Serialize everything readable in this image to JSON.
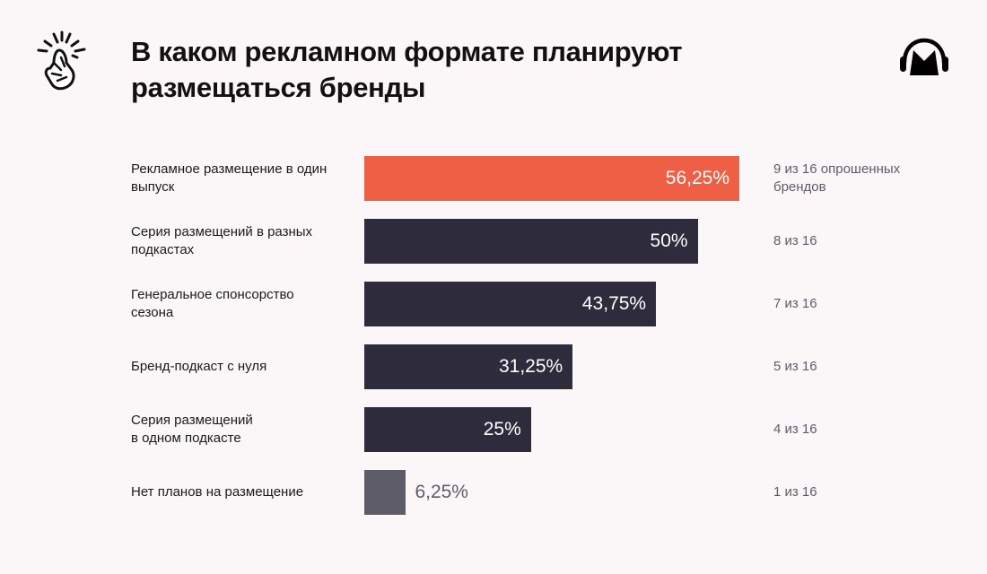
{
  "header": {
    "title_line1": "В каком рекламном формате планируют",
    "title_line2": "размещаться бренды",
    "left_logo_icon": "snapping-fingers-icon",
    "right_logo_icon": "headphones-m-logo-icon"
  },
  "colors": {
    "background": "#fbf7f8",
    "highlight": "#ee5f45",
    "bar": "#2e2b3d",
    "muted_bar": "#5e5c68",
    "muted_text": "#5e5c68"
  },
  "chart_data": {
    "type": "bar",
    "orientation": "horizontal",
    "title": "В каком рекламном формате планируют размещаться бренды",
    "xlabel": "",
    "ylabel": "",
    "xlim": [
      0,
      100
    ],
    "grid": false,
    "categories": [
      "Рекламное размещение в один выпуск",
      "Серия размещений в разных подкастах",
      "Генеральное спонсорство сезона",
      "Бренд-подкаст с нуля",
      "Серия размещений в одном подкасте",
      "Нет планов на размещение"
    ],
    "values": [
      56.25,
      50,
      43.75,
      31.25,
      25,
      6.25
    ],
    "rows": [
      {
        "label_lines": [
          "Рекламное размещение в один",
          "выпуск"
        ],
        "value": 56.25,
        "value_label": "56,25%",
        "count_lines": [
          "9 из 16 опрошенных",
          "брендов"
        ],
        "style": "highlight"
      },
      {
        "label_lines": [
          "Серия размещений в разных",
          "подкастах"
        ],
        "value": 50,
        "value_label": "50%",
        "count_lines": [
          "8 из 16"
        ],
        "style": "bar"
      },
      {
        "label_lines": [
          "Генеральное спонсорство",
          "сезона"
        ],
        "value": 43.75,
        "value_label": "43,75%",
        "count_lines": [
          "7 из 16"
        ],
        "style": "bar"
      },
      {
        "label_lines": [
          "Бренд-подкаст с нуля"
        ],
        "value": 31.25,
        "value_label": "31,25%",
        "count_lines": [
          "5 из 16"
        ],
        "style": "bar"
      },
      {
        "label_lines": [
          "Серия размещений",
          "в одном подкасте"
        ],
        "value": 25,
        "value_label": "25%",
        "count_lines": [
          "4 из 16"
        ],
        "style": "bar"
      },
      {
        "label_lines": [
          "Нет планов на размещение"
        ],
        "value": 6.25,
        "value_label": "6,25%",
        "count_lines": [
          "1 из 16"
        ],
        "style": "muted_bar"
      }
    ]
  }
}
